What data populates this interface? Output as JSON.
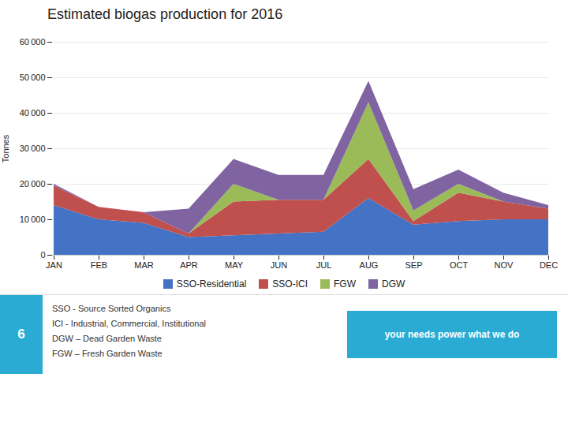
{
  "chart_data": {
    "type": "area",
    "stacked": true,
    "title": "Estimated biogas production for 2016",
    "ylabel": "Tonnes",
    "categories": [
      "JAN",
      "FEB",
      "MAR",
      "APR",
      "MAY",
      "JUN",
      "JUL",
      "AUG",
      "SEP",
      "OCT",
      "NOV",
      "DEC"
    ],
    "series": [
      {
        "name": "SSO-Residential",
        "color": "#4472C4",
        "values": [
          14000,
          10000,
          9000,
          5000,
          5500,
          6000,
          6500,
          16000,
          8500,
          9500,
          10000,
          10000
        ]
      },
      {
        "name": "SSO-ICI",
        "color": "#C0504D",
        "values": [
          5500,
          3500,
          3000,
          1000,
          9500,
          9500,
          9000,
          11000,
          1000,
          8000,
          5000,
          3000
        ]
      },
      {
        "name": "FGW",
        "color": "#9BBB59",
        "values": [
          0,
          0,
          0,
          0,
          5000,
          0,
          0,
          16000,
          3000,
          2500,
          0,
          0
        ]
      },
      {
        "name": "DGW",
        "color": "#8064A2",
        "values": [
          500,
          0,
          0,
          7000,
          7000,
          7000,
          7000,
          6000,
          6000,
          4000,
          2500,
          1000
        ]
      }
    ],
    "ylim": [
      0,
      60000
    ],
    "yticks": [
      0,
      {
        "value": 10000,
        "label": "10 000"
      },
      {
        "value": 20000,
        "label": "20 000"
      },
      {
        "value": 30000,
        "label": "30 000"
      },
      {
        "value": 40000,
        "label": "40 000"
      },
      {
        "value": 50000,
        "label": "50 000"
      },
      {
        "value": 60000,
        "label": "60 000"
      }
    ],
    "grid": true,
    "legend": "bottom",
    "annotations": [
      "SSO - Source Sorted Organics",
      "ICI - Industrial, Commercial, Institutional",
      "DGW – Dead Garden Waste",
      "FGW – Fresh Garden Waste",
      "6",
      "your needs power what we do"
    ]
  }
}
